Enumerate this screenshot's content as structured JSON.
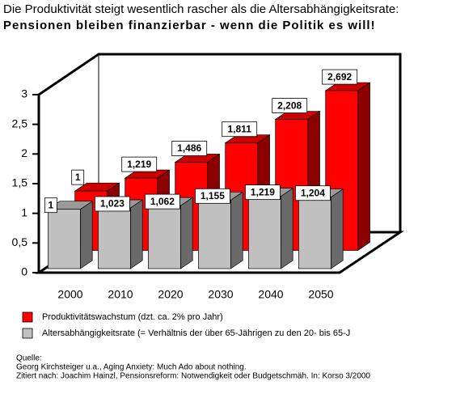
{
  "chart_data": {
    "type": "bar3d",
    "title": "Die Produktivität steigt wesentlich rascher als die Altersabhängigkeitsrate:",
    "subtitle": "Pensionen bleiben finanzierbar - wenn die Politik es will!",
    "categories": [
      "2000",
      "2010",
      "2020",
      "2030",
      "2040",
      "2050"
    ],
    "series": [
      {
        "name": "Produktivitätswachstum (dzt. ca. 2% pro Jahr)",
        "color": "#ff0000",
        "values": [
          1,
          1.219,
          1.486,
          1.811,
          2.208,
          2.692
        ],
        "value_labels": [
          "1",
          "1,219",
          "1,486",
          "1,811",
          "2,208",
          "2,692"
        ]
      },
      {
        "name": "Altersabhängigkeitsrate (= Verhältnis der über 65-Jährigen zu den 20- bis 65-J",
        "color": "#c0c0c0",
        "values": [
          1,
          1.023,
          1.062,
          1.155,
          1.219,
          1.204
        ],
        "value_labels": [
          "1",
          "1,023",
          "1,062",
          "1,155",
          "1,219",
          "1,204"
        ]
      }
    ],
    "ylim": [
      0,
      3
    ],
    "yticks": [
      0,
      {
        "value": 0.5,
        "label": "0,5"
      },
      1,
      {
        "value": 1.5,
        "label": "1,5"
      },
      2,
      {
        "value": 2.5,
        "label": "2,5"
      },
      3
    ],
    "source": [
      "Quelle:",
      "Georg Kirchsteiger u.a., Aging Anxiety: Much Ado about nothing.",
      "Zitiert nach: Joachim Hainzl, Pensionsreform: Notwendigkeit oder Budgetschmäh. In: Korso 3/2000"
    ]
  }
}
